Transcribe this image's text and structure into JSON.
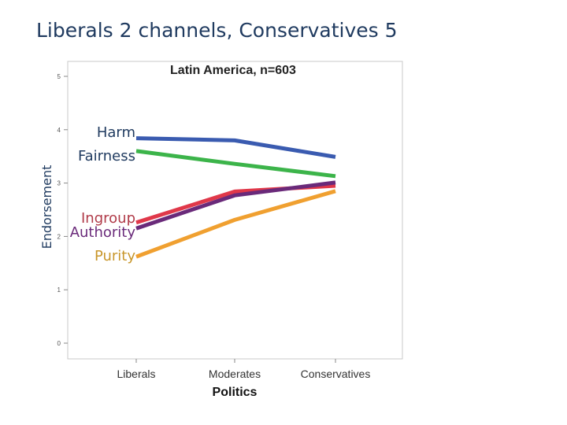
{
  "slide": {
    "title": "Liberals 2 channels, Conservatives 5"
  },
  "chart_data": {
    "type": "line",
    "title": "Latin America, n=603",
    "xlabel": "Politics",
    "ylabel": "Endorsement",
    "categories": [
      "Liberals",
      "Moderates",
      "Conservatives"
    ],
    "ylim": [
      0,
      5
    ],
    "yticks": [
      0,
      1,
      2,
      3,
      4,
      5
    ],
    "grid": false,
    "legend": "inline-left",
    "series": [
      {
        "name": "Harm",
        "color": "#3a5bb0",
        "label_color": "#1f3a5f",
        "values": [
          3.84,
          3.8,
          3.49
        ]
      },
      {
        "name": "Fairness",
        "color": "#3cb44a",
        "label_color": "#1f3a5f",
        "values": [
          3.6,
          3.36,
          3.13
        ]
      },
      {
        "name": "Ingroup",
        "color": "#e0384a",
        "label_color": "#b03a48",
        "values": [
          2.26,
          2.84,
          2.95
        ]
      },
      {
        "name": "Authority",
        "color": "#6a2a7a",
        "label_color": "#6a2a7a",
        "values": [
          2.15,
          2.77,
          3.01
        ]
      },
      {
        "name": "Purity",
        "color": "#f0a030",
        "label_color": "#c8962a",
        "values": [
          1.62,
          2.31,
          2.85
        ]
      }
    ]
  }
}
